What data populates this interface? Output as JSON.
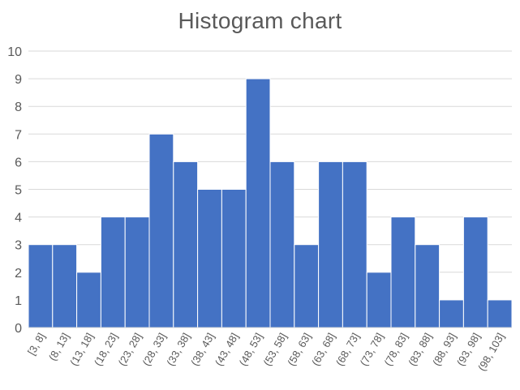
{
  "chart_data": {
    "type": "bar",
    "title": "Histogram chart",
    "xlabel": "",
    "ylabel": "",
    "categories": [
      "[3, 8]",
      "(8, 13]",
      "(13, 18]",
      "(18, 23]",
      "(23, 28]",
      "(28, 33]",
      "(33, 38]",
      "(38, 43]",
      "(43, 48]",
      "(48, 53]",
      "(53, 58]",
      "(58, 63]",
      "(63, 68]",
      "(68, 73]",
      "(73, 78]",
      "(78, 83]",
      "(83, 88]",
      "(88, 93]",
      "(93, 98]",
      "(98, 103]"
    ],
    "values": [
      3,
      3,
      2,
      4,
      4,
      7,
      6,
      5,
      5,
      9,
      6,
      3,
      6,
      6,
      2,
      4,
      3,
      1,
      4,
      1
    ],
    "ylim": [
      0,
      10
    ],
    "yticks": [
      0,
      1,
      2,
      3,
      4,
      5,
      6,
      7,
      8,
      9,
      10
    ],
    "grid": true,
    "legend": "none",
    "colors": {
      "bar": "#4472C4",
      "bar_edge": "#ffffff",
      "grid": "#d9d9d9",
      "text": "#595959"
    }
  }
}
